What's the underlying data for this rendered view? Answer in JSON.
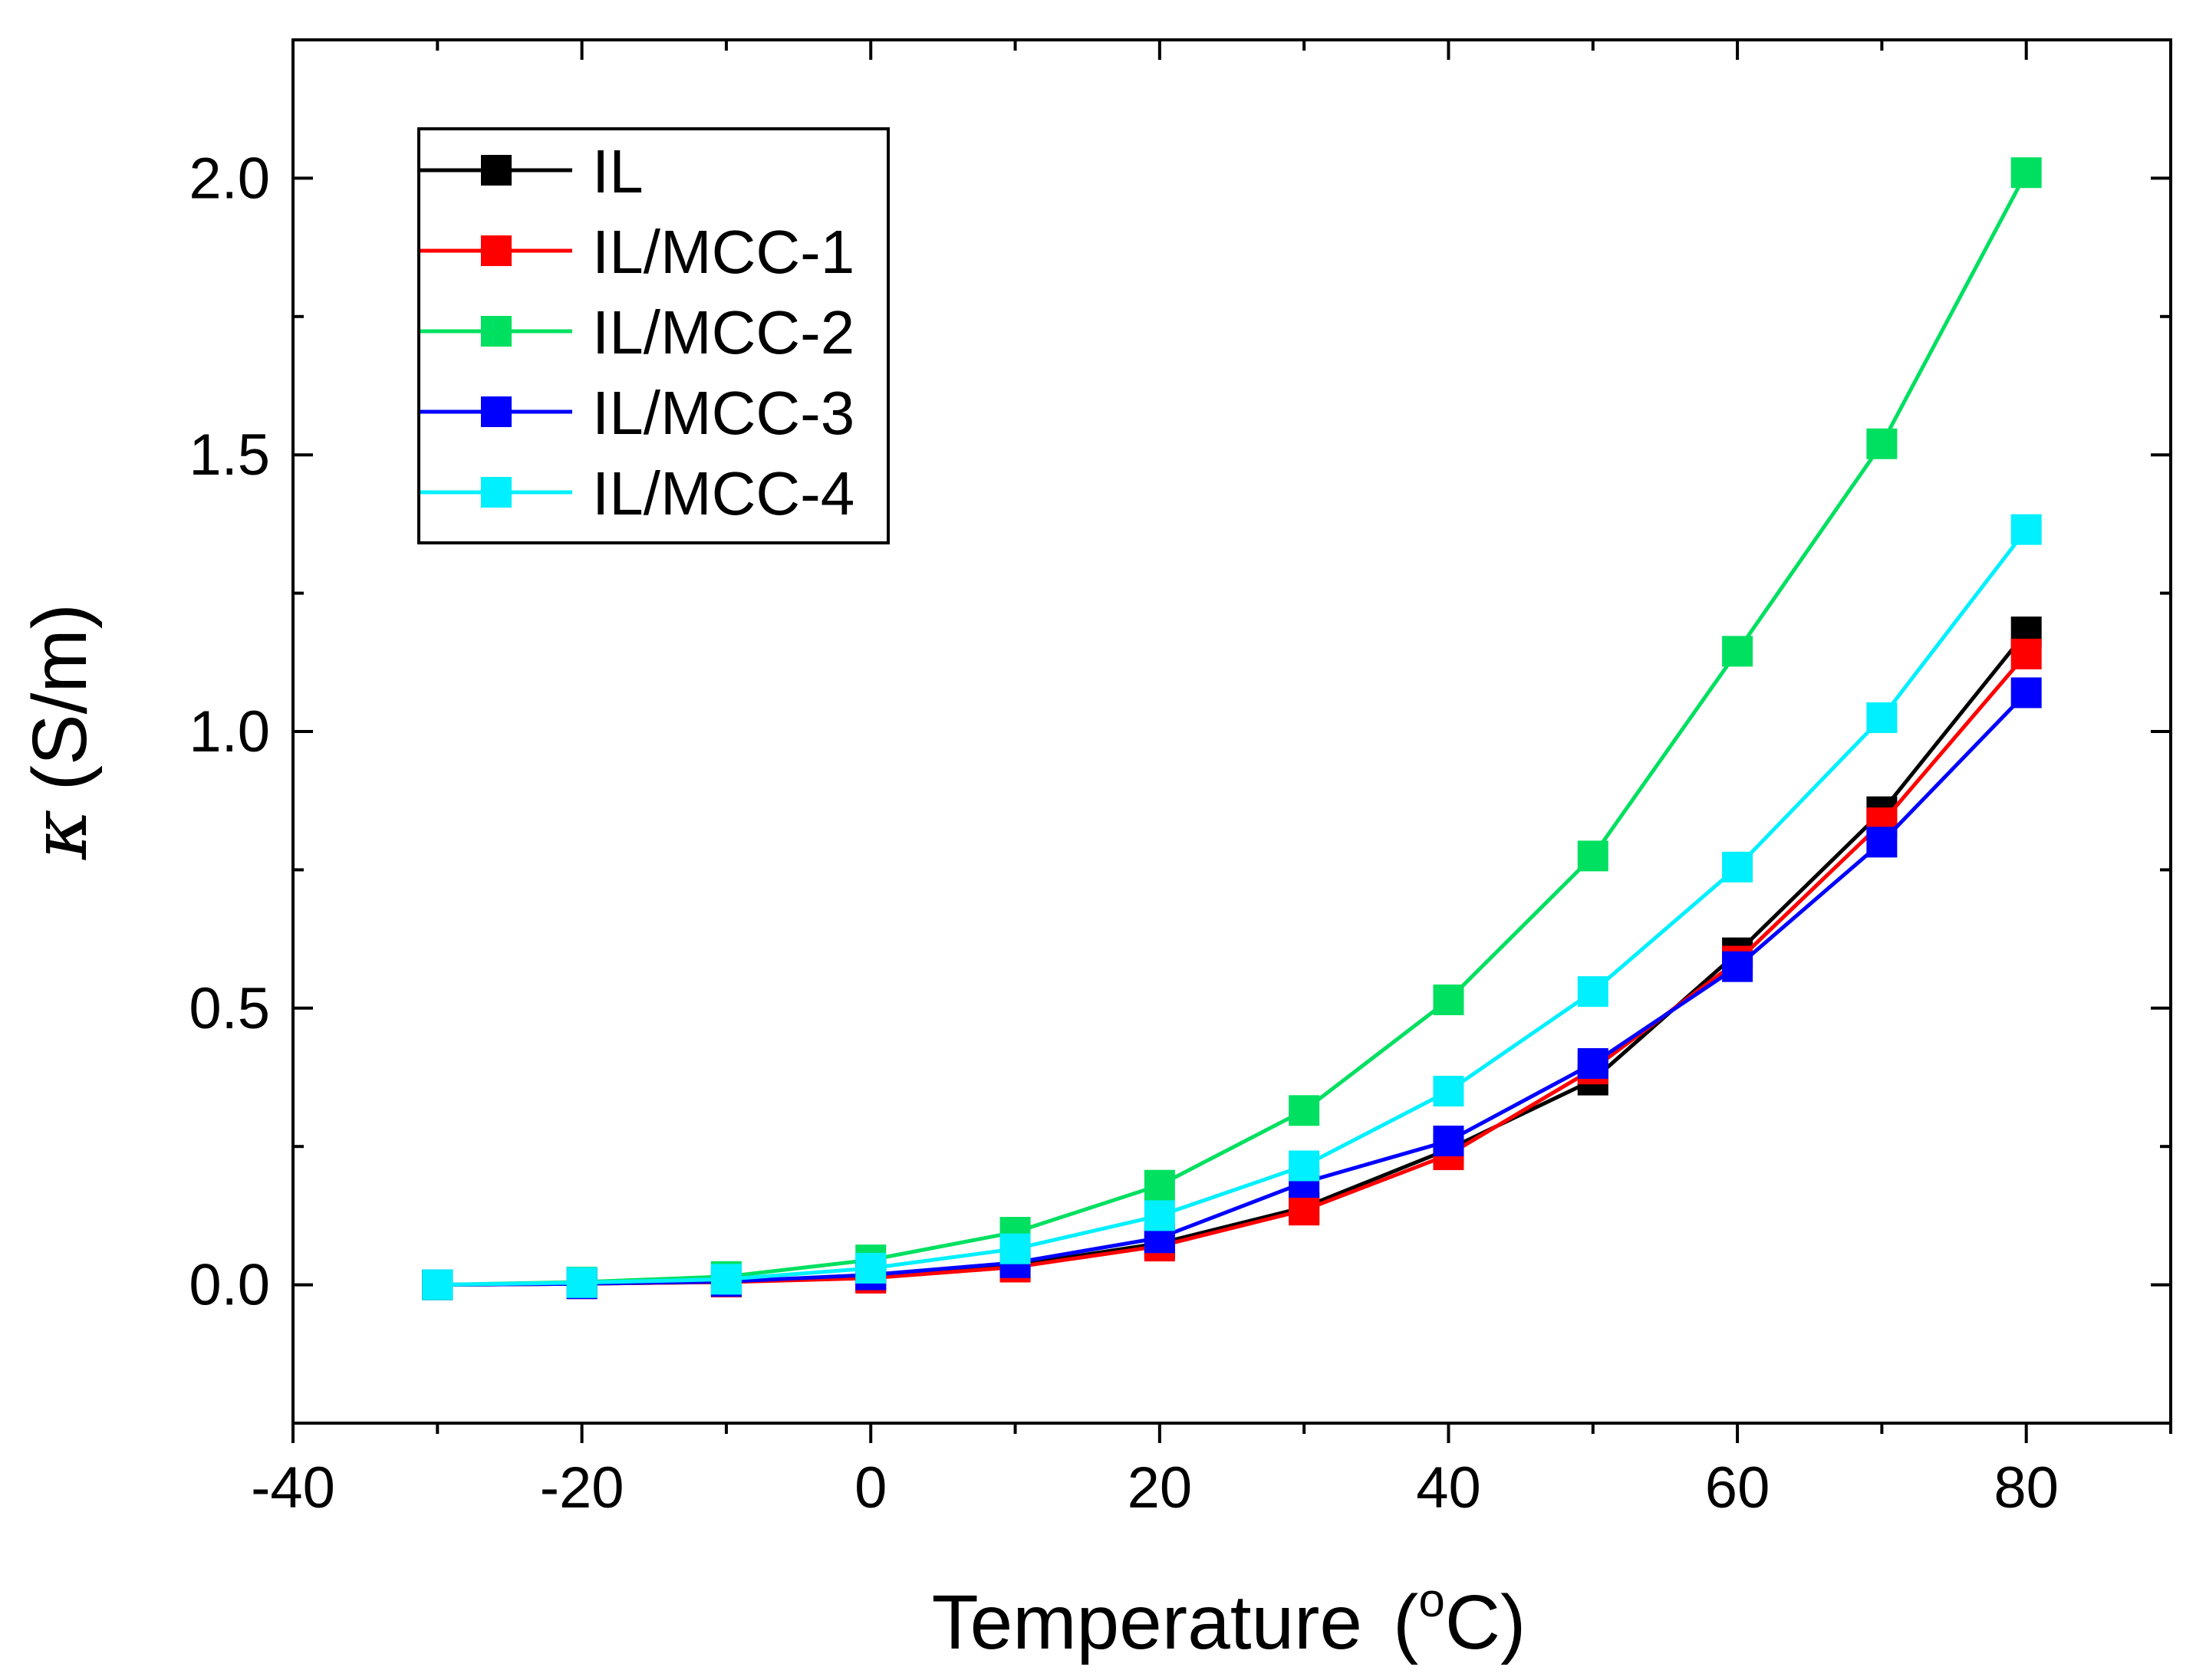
{
  "chart_data": {
    "type": "line",
    "title": "",
    "xlabel": "Temperature",
    "xlabel_unit_prefix": "(",
    "xlabel_unit_sup": "o",
    "xlabel_unit_suffix": "C)",
    "ylabel_symbol": "κ",
    "ylabel_unit": "(S/m)",
    "xlim": [
      -40,
      90
    ],
    "ylim": [
      -0.25,
      2.25
    ],
    "x_ticks": [
      -40,
      -20,
      0,
      20,
      40,
      60,
      80
    ],
    "x_tick_labels": [
      "-40",
      "-20",
      "0",
      "20",
      "40",
      "60",
      "80"
    ],
    "y_ticks": [
      0.0,
      0.5,
      1.0,
      1.5,
      2.0
    ],
    "y_tick_labels": [
      "0.0",
      "0.5",
      "1.0",
      "1.5",
      "2.0"
    ],
    "grid": false,
    "legend_position": "top-left",
    "x": [
      -30,
      -20,
      -10,
      0,
      10,
      20,
      30,
      40,
      50,
      60,
      70,
      80
    ],
    "series": [
      {
        "name": "IL",
        "color": "#000000",
        "values": [
          0.0,
          0.002,
          0.005,
          0.015,
          0.035,
          0.075,
          0.14,
          0.245,
          0.37,
          0.6,
          0.855,
          1.18
        ]
      },
      {
        "name": "IL/MCC-1",
        "color": "#ff0000",
        "values": [
          0.0,
          0.002,
          0.005,
          0.012,
          0.032,
          0.07,
          0.135,
          0.235,
          0.39,
          0.585,
          0.835,
          1.14
        ]
      },
      {
        "name": "IL/MCC-2",
        "color": "#00e060",
        "values": [
          0.0,
          0.005,
          0.015,
          0.045,
          0.095,
          0.18,
          0.315,
          0.515,
          0.775,
          1.145,
          1.52,
          2.01
        ]
      },
      {
        "name": "IL/MCC-3",
        "color": "#0000ff",
        "values": [
          0.0,
          0.002,
          0.006,
          0.018,
          0.04,
          0.085,
          0.185,
          0.26,
          0.4,
          0.575,
          0.8,
          1.07
        ]
      },
      {
        "name": "IL/MCC-4",
        "color": "#00f0ff",
        "values": [
          0.0,
          0.004,
          0.01,
          0.03,
          0.065,
          0.125,
          0.215,
          0.35,
          0.53,
          0.755,
          1.025,
          1.365
        ]
      }
    ]
  }
}
